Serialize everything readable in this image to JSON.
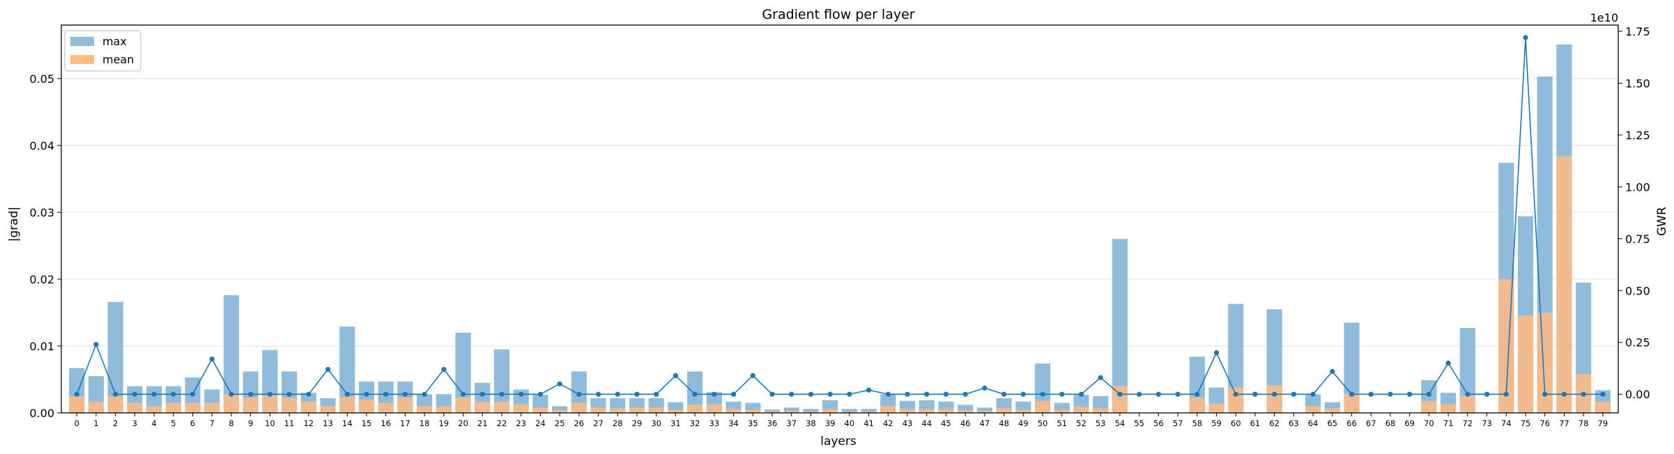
{
  "chart_data": {
    "type": "bar",
    "title": "Gradient flow per layer",
    "xlabel": "layers",
    "ylabel": "|grad|",
    "y2label": "GWR",
    "y2_offset_text": "1e10",
    "categories": [
      "0",
      "1",
      "2",
      "3",
      "4",
      "5",
      "6",
      "7",
      "8",
      "9",
      "10",
      "11",
      "12",
      "13",
      "14",
      "15",
      "16",
      "17",
      "18",
      "19",
      "20",
      "21",
      "22",
      "23",
      "24",
      "25",
      "26",
      "27",
      "28",
      "29",
      "30",
      "31",
      "32",
      "33",
      "34",
      "35",
      "36",
      "37",
      "38",
      "39",
      "40",
      "41",
      "42",
      "43",
      "44",
      "45",
      "46",
      "47",
      "48",
      "49",
      "50",
      "51",
      "52",
      "53",
      "54",
      "55",
      "56",
      "57",
      "58",
      "59",
      "60",
      "61",
      "62",
      "63",
      "64",
      "65",
      "66",
      "67",
      "68",
      "69",
      "70",
      "71",
      "72",
      "73",
      "74",
      "75",
      "76",
      "77",
      "78",
      "79"
    ],
    "ylim": [
      0,
      0.058
    ],
    "yticks": [
      0.0,
      0.01,
      0.02,
      0.03,
      0.04,
      0.05
    ],
    "ytick_labels": [
      "0.00",
      "0.01",
      "0.02",
      "0.03",
      "0.04",
      "0.05"
    ],
    "y2lim": [
      -0.09,
      1.78
    ],
    "y2ticks": [
      0.0,
      0.25,
      0.5,
      0.75,
      1.0,
      1.25,
      1.5,
      1.75
    ],
    "y2tick_labels": [
      "0.00",
      "0.25",
      "0.50",
      "0.75",
      "1.00",
      "1.25",
      "1.50",
      "1.75"
    ],
    "grid": true,
    "legend": "top-left",
    "series": [
      {
        "name": "max",
        "type": "bar",
        "color": "#8fbcdc",
        "values": [
          0.0067,
          0.0055,
          0.0166,
          0.004,
          0.004,
          0.004,
          0.0053,
          0.0035,
          0.0176,
          0.0062,
          0.0094,
          0.0062,
          0.003,
          0.0022,
          0.0129,
          0.0047,
          0.0047,
          0.0047,
          0.0028,
          0.0028,
          0.012,
          0.0045,
          0.0095,
          0.0035,
          0.0027,
          0.001,
          0.0062,
          0.0022,
          0.0022,
          0.0022,
          0.0022,
          0.0016,
          0.0062,
          0.0031,
          0.0017,
          0.0015,
          0.0005,
          0.0008,
          0.0006,
          0.0019,
          0.0006,
          0.0006,
          0.0028,
          0.0018,
          0.0019,
          0.0017,
          0.0012,
          0.0008,
          0.0022,
          0.0017,
          0.0074,
          0.0015,
          0.0027,
          0.0025,
          0.026,
          0.0,
          0.0,
          0.0,
          0.0084,
          0.0038,
          0.0163,
          0.0,
          0.0155,
          0.0,
          0.0028,
          0.0016,
          0.0135,
          0.0,
          0.0,
          0.0,
          0.0049,
          0.003,
          0.0127,
          0.0,
          0.0374,
          0.0294,
          0.0503,
          0.0551,
          0.0195,
          0.0034
        ]
      },
      {
        "name": "mean",
        "type": "bar",
        "color": "#ffbb82",
        "values": [
          0.0025,
          0.0017,
          0.0025,
          0.0015,
          0.001,
          0.0015,
          0.0015,
          0.0015,
          0.0028,
          0.0023,
          0.0026,
          0.0023,
          0.0017,
          0.001,
          0.0024,
          0.002,
          0.0015,
          0.0023,
          0.001,
          0.001,
          0.0023,
          0.0016,
          0.0017,
          0.0013,
          0.0008,
          0.0004,
          0.0015,
          0.0008,
          0.0007,
          0.0008,
          0.0008,
          0.0005,
          0.0012,
          0.0013,
          0.0006,
          0.0005,
          0.0002,
          0.0003,
          0.0002,
          0.0006,
          0.0002,
          0.0002,
          0.001,
          0.0006,
          0.0006,
          0.0006,
          0.0004,
          0.0003,
          0.0007,
          0.0005,
          0.0018,
          0.0005,
          0.0009,
          0.0007,
          0.004,
          0.0,
          0.0,
          0.0,
          0.0023,
          0.0014,
          0.0038,
          0.0,
          0.0041,
          0.0,
          0.001,
          0.0007,
          0.0028,
          0.0,
          0.0,
          0.0,
          0.0018,
          0.0013,
          0.0026,
          0.0,
          0.02,
          0.0146,
          0.015,
          0.0384,
          0.0058,
          0.0017
        ]
      },
      {
        "name": "GWR",
        "type": "line",
        "axis": "right",
        "color": "#1f77b4",
        "values": [
          0.0,
          0.24,
          0.0,
          0.0,
          0.0,
          0.0,
          0.0,
          0.17,
          0.0,
          0.0,
          0.0,
          0.0,
          0.0,
          0.12,
          0.0,
          0.0,
          0.0,
          0.0,
          0.0,
          0.12,
          0.0,
          0.0,
          0.0,
          0.0,
          0.0,
          0.05,
          0.0,
          0.0,
          0.0,
          0.0,
          0.0,
          0.09,
          0.0,
          0.0,
          0.0,
          0.09,
          0.0,
          0.0,
          0.0,
          0.0,
          0.0,
          0.02,
          0.0,
          0.0,
          0.0,
          0.0,
          0.0,
          0.03,
          0.0,
          0.0,
          0.0,
          0.0,
          0.0,
          0.08,
          0.0,
          0.0,
          0.0,
          0.0,
          0.0,
          0.2,
          0.0,
          0.0,
          0.0,
          0.0,
          0.0,
          0.11,
          0.0,
          0.0,
          0.0,
          0.0,
          0.0,
          0.15,
          0.0,
          0.0,
          0.0,
          1.72,
          0.0,
          0.0,
          0.0,
          0.0
        ]
      }
    ]
  }
}
